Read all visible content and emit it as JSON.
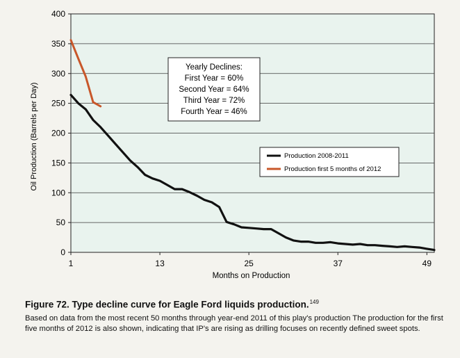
{
  "chart_data": {
    "type": "line",
    "title": "",
    "xlabel": "Months on Production",
    "ylabel": "Oil Production (Barrels per Day)",
    "xlim": [
      1,
      50
    ],
    "ylim": [
      0,
      400
    ],
    "x_ticks": [
      1,
      13,
      25,
      37,
      49
    ],
    "y_ticks": [
      0,
      50,
      100,
      150,
      200,
      250,
      300,
      350,
      400
    ],
    "grid": "horizontal",
    "legend_position": "right",
    "series": [
      {
        "name": "Production 2008-2011",
        "color": "#111111",
        "x": [
          1,
          2,
          3,
          4,
          5,
          6,
          7,
          8,
          9,
          10,
          11,
          12,
          13,
          14,
          15,
          16,
          17,
          18,
          19,
          20,
          21,
          22,
          23,
          24,
          25,
          26,
          27,
          28,
          29,
          30,
          31,
          32,
          33,
          34,
          35,
          36,
          37,
          38,
          39,
          40,
          41,
          42,
          43,
          44,
          45,
          46,
          47,
          48,
          49,
          50
        ],
        "y": [
          264,
          250,
          240,
          222,
          210,
          196,
          182,
          168,
          154,
          143,
          130,
          124,
          120,
          113,
          106,
          106,
          101,
          95,
          88,
          84,
          76,
          51,
          47,
          42,
          41,
          40,
          39,
          39,
          32,
          25,
          20,
          18,
          18,
          16,
          16,
          17,
          15,
          14,
          13,
          14,
          12,
          12,
          11,
          10,
          9,
          10,
          9,
          8,
          6,
          4
        ]
      },
      {
        "name": "Production first 5 months of 2012",
        "color": "#c8572a",
        "x": [
          1,
          2,
          3,
          4,
          5
        ],
        "y": [
          356,
          325,
          295,
          252,
          245
        ]
      }
    ],
    "annotation": {
      "title": "Yearly Declines:",
      "lines": [
        "First Year = 60%",
        "Second Year =  64%",
        "Third Year = 72%",
        "Fourth Year = 46%"
      ]
    }
  },
  "caption": {
    "title": "Figure 72. Type decline curve for Eagle Ford liquids production.",
    "ref": "149",
    "body": "Based on data from the most recent 50 months through year-end 2011 of this play's production The production for the first five months of 2012 is also shown, indicating that IP's are rising as drilling focuses on recently defined sweet spots."
  }
}
